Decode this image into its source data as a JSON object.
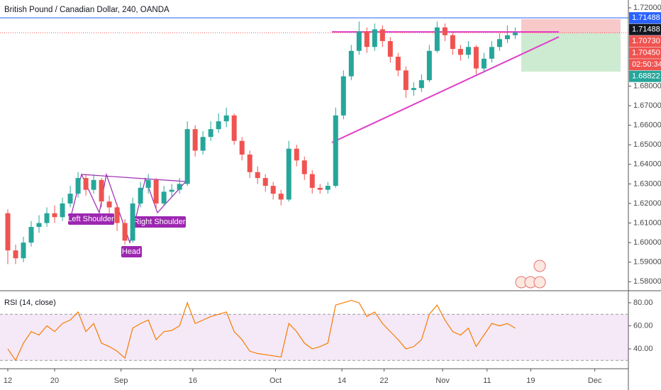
{
  "chart_data": [
    {
      "type": "candlestick",
      "title": "British Pound / Canadian Dollar, 240, OANDA",
      "up_color": "#26a69a",
      "down_color": "#ef5350",
      "open": [
        1.615,
        1.596,
        1.592,
        1.6,
        1.608,
        1.61,
        1.615,
        1.613,
        1.62,
        1.625,
        1.633,
        1.627,
        1.632,
        1.621,
        1.618,
        1.61,
        1.601,
        1.62,
        1.628,
        1.632,
        1.62,
        1.626,
        1.627,
        1.63,
        1.658,
        1.647,
        1.654,
        1.658,
        1.662,
        1.665,
        1.652,
        1.645,
        1.636,
        1.633,
        1.629,
        1.625,
        1.622,
        1.648,
        1.642,
        1.635,
        1.628,
        1.627,
        1.629,
        1.665,
        1.685,
        1.698,
        1.708,
        1.7,
        1.709,
        1.703,
        1.695,
        1.688,
        1.678,
        1.679,
        1.683,
        1.698,
        1.71,
        1.706,
        1.699,
        1.696,
        1.7,
        1.689,
        1.694,
        1.7,
        1.704,
        1.706
      ],
      "high": [
        1.617,
        1.599,
        1.603,
        1.611,
        1.614,
        1.618,
        1.619,
        1.623,
        1.629,
        1.636,
        1.635,
        1.635,
        1.633,
        1.624,
        1.62,
        1.612,
        1.623,
        1.631,
        1.635,
        1.633,
        1.629,
        1.63,
        1.633,
        1.662,
        1.66,
        1.657,
        1.662,
        1.666,
        1.669,
        1.666,
        1.654,
        1.647,
        1.639,
        1.635,
        1.631,
        1.627,
        1.652,
        1.65,
        1.644,
        1.637,
        1.63,
        1.631,
        1.669,
        1.688,
        1.701,
        1.713,
        1.71,
        1.712,
        1.711,
        1.705,
        1.697,
        1.69,
        1.682,
        1.686,
        1.701,
        1.713,
        1.712,
        1.708,
        1.701,
        1.703,
        1.701,
        1.697,
        1.703,
        1.707,
        1.711,
        1.71
      ],
      "low": [
        1.589,
        1.589,
        1.59,
        1.598,
        1.605,
        1.608,
        1.61,
        1.611,
        1.618,
        1.623,
        1.624,
        1.625,
        1.618,
        1.615,
        1.606,
        1.599,
        1.6,
        1.618,
        1.625,
        1.617,
        1.619,
        1.623,
        1.625,
        1.629,
        1.644,
        1.645,
        1.652,
        1.656,
        1.659,
        1.65,
        1.642,
        1.633,
        1.63,
        1.626,
        1.622,
        1.619,
        1.621,
        1.639,
        1.632,
        1.625,
        1.625,
        1.625,
        1.628,
        1.663,
        1.683,
        1.696,
        1.697,
        1.698,
        1.7,
        1.692,
        1.685,
        1.674,
        1.675,
        1.677,
        1.682,
        1.697,
        1.703,
        1.696,
        1.693,
        1.694,
        1.686,
        1.687,
        1.692,
        1.698,
        1.702,
        1.704
      ],
      "close": [
        1.596,
        1.592,
        1.6,
        1.608,
        1.61,
        1.615,
        1.613,
        1.62,
        1.625,
        1.633,
        1.627,
        1.632,
        1.621,
        1.618,
        1.61,
        1.601,
        1.62,
        1.628,
        1.632,
        1.62,
        1.626,
        1.627,
        1.63,
        1.658,
        1.647,
        1.654,
        1.658,
        1.662,
        1.665,
        1.652,
        1.645,
        1.636,
        1.633,
        1.629,
        1.625,
        1.622,
        1.648,
        1.642,
        1.635,
        1.628,
        1.627,
        1.629,
        1.665,
        1.685,
        1.698,
        1.708,
        1.7,
        1.709,
        1.703,
        1.695,
        1.688,
        1.678,
        1.679,
        1.683,
        1.698,
        1.71,
        1.706,
        1.699,
        1.696,
        1.7,
        1.689,
        1.694,
        1.7,
        1.704,
        1.706,
        1.7073
      ],
      "xlim": [
        -1,
        79.5
      ],
      "xticks": [
        {
          "value": 0,
          "label": "12"
        },
        {
          "value": 6,
          "label": "20"
        },
        {
          "value": 14.5,
          "label": "Sep"
        },
        {
          "value": 23.7,
          "label": "16"
        },
        {
          "value": 34.3,
          "label": "Oct"
        },
        {
          "value": 42.8,
          "label": "14"
        },
        {
          "value": 48.2,
          "label": "22"
        },
        {
          "value": 55.7,
          "label": "Nov"
        },
        {
          "value": 61.4,
          "label": "11"
        },
        {
          "value": 67,
          "label": "19"
        },
        {
          "value": 75.2,
          "label": "Dec"
        }
      ],
      "ylim": [
        1.5754,
        1.724
      ],
      "yticks": [
        {
          "value": 1.58,
          "label": "1.58000"
        },
        {
          "value": 1.59,
          "label": "1.59000"
        },
        {
          "value": 1.6,
          "label": "1.60000"
        },
        {
          "value": 1.61,
          "label": "1.61000"
        },
        {
          "value": 1.62,
          "label": "1.62000"
        },
        {
          "value": 1.63,
          "label": "1.63000"
        },
        {
          "value": 1.64,
          "label": "1.64000"
        },
        {
          "value": 1.65,
          "label": "1.65000"
        },
        {
          "value": 1.66,
          "label": "1.66000"
        },
        {
          "value": 1.67,
          "label": "1.67000"
        },
        {
          "value": 1.68,
          "label": "1.68000"
        },
        {
          "value": 1.72,
          "label": "1.72000"
        }
      ],
      "price_labels": [
        {
          "value": 1.71488,
          "label": "1.71488",
          "color": "#2962ff"
        },
        {
          "value": 1.71488,
          "label": "1.71488",
          "color": "#131722"
        },
        {
          "value": 1.7073,
          "label": "1.70730",
          "color": "#ef5350"
        },
        {
          "value": 1.7045,
          "label": "1.70450",
          "color": "#ef5350"
        },
        {
          "value": 1.68822,
          "label": "1.68822",
          "color": "#26a69a"
        }
      ],
      "countdown": "02:50:34",
      "annotations": [
        "Left Shoulder",
        "Head",
        "Right Shoulder"
      ]
    },
    {
      "type": "line",
      "title": "RSI (14, close)",
      "color": "#f57c00",
      "values": [
        40,
        30,
        45,
        55,
        52,
        60,
        55,
        62,
        65,
        72,
        55,
        62,
        45,
        42,
        38,
        32,
        58,
        62,
        65,
        48,
        55,
        56,
        60,
        80,
        62,
        65,
        68,
        70,
        72,
        55,
        48,
        38,
        36,
        35,
        34,
        33,
        62,
        55,
        45,
        40,
        42,
        45,
        78,
        80,
        82,
        80,
        68,
        72,
        62,
        55,
        48,
        40,
        42,
        48,
        70,
        78,
        65,
        55,
        52,
        58,
        42,
        52,
        62,
        60,
        62,
        58
      ],
      "ylim": [
        22.8,
        89.2
      ],
      "yticks": [
        {
          "value": 40,
          "label": "40.00"
        },
        {
          "value": 60,
          "label": "60.00"
        },
        {
          "value": 80,
          "label": "80.00"
        }
      ],
      "upper_band": 70,
      "lower_band": 30
    }
  ]
}
